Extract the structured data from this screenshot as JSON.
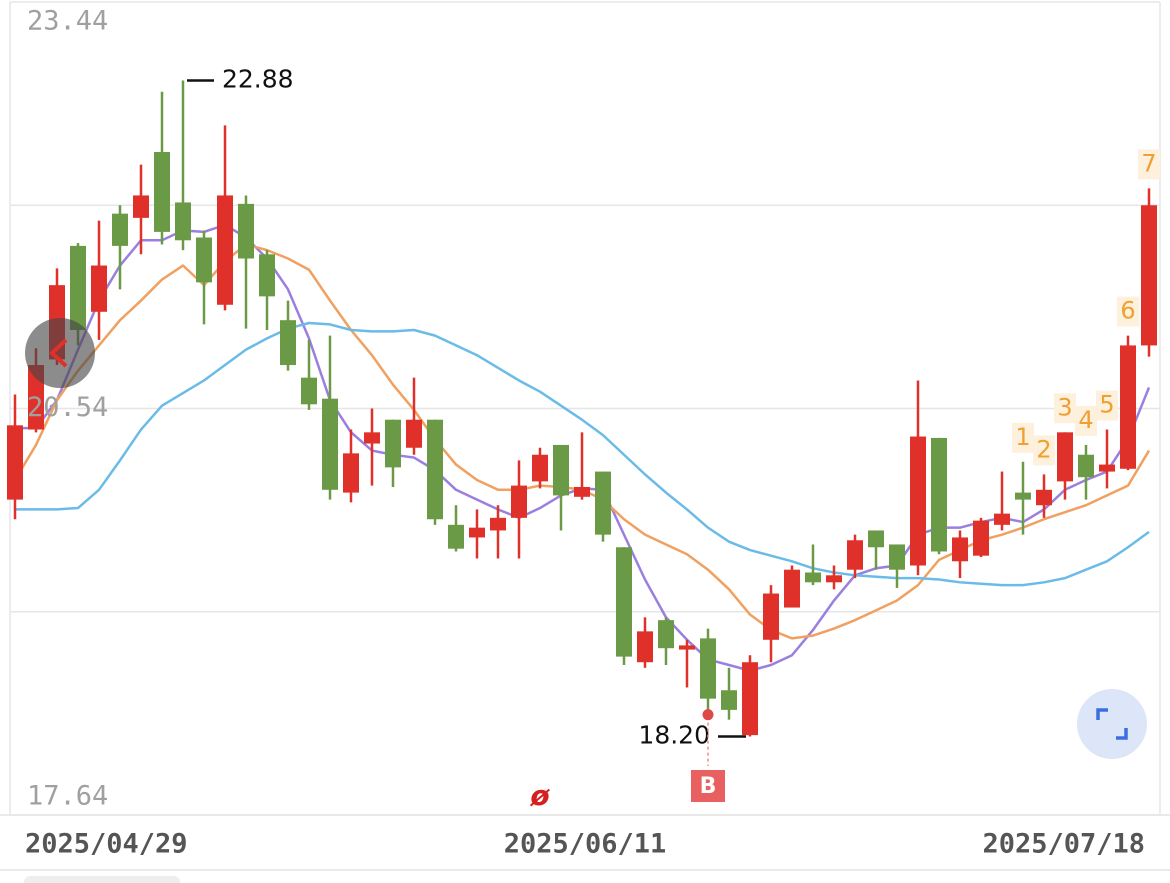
{
  "chart_data": {
    "type": "candlestick",
    "ylim": [
      17.64,
      23.44
    ],
    "yticks": [
      17.64,
      20.54,
      23.44
    ],
    "grid": true,
    "up_color": "#e0302a",
    "down_color": "#6a9a45",
    "categories": [
      "2025/04/29",
      null,
      null,
      null,
      null,
      null,
      null,
      null,
      null,
      null,
      null,
      null,
      null,
      null,
      null,
      null,
      null,
      null,
      null,
      null,
      null,
      null,
      null,
      null,
      null,
      null,
      null,
      "2025/06/11",
      null,
      null,
      null,
      null,
      null,
      null,
      null,
      null,
      null,
      null,
      null,
      null,
      null,
      null,
      null,
      null,
      null,
      null,
      null,
      null,
      null,
      null,
      null,
      null,
      null,
      null,
      "2025/07/18"
    ],
    "open": [
      19.89,
      20.39,
      20.89,
      21.7,
      21.23,
      21.93,
      21.9,
      22.37,
      22.01,
      21.76,
      21.28,
      22.0,
      21.64,
      21.17,
      20.76,
      20.61,
      19.94,
      20.29,
      20.46,
      20.26,
      20.46,
      19.71,
      19.62,
      19.67,
      19.76,
      20.02,
      20.28,
      19.91,
      20.09,
      19.55,
      18.73,
      19.03,
      18.82,
      18.9,
      18.53,
      18.21,
      18.89,
      19.12,
      19.37,
      19.3,
      19.39,
      19.67,
      19.57,
      19.42,
      20.33,
      19.45,
      19.49,
      19.71,
      19.94,
      19.85,
      20.02,
      20.21,
      20.09,
      20.11,
      20.99
    ],
    "high": [
      20.64,
      20.97,
      21.54,
      21.72,
      21.88,
      21.99,
      22.28,
      22.8,
      22.88,
      21.81,
      22.56,
      22.06,
      21.67,
      21.31,
      21.03,
      21.06,
      20.39,
      20.54,
      20.46,
      20.76,
      20.46,
      19.85,
      19.82,
      19.85,
      20.17,
      20.26,
      20.28,
      20.37,
      20.09,
      19.55,
      19.05,
      19.05,
      18.89,
      18.97,
      18.69,
      18.78,
      19.28,
      19.42,
      19.57,
      19.42,
      19.64,
      19.67,
      19.57,
      20.74,
      20.33,
      19.67,
      19.76,
      20.09,
      20.16,
      20.07,
      20.37,
      20.28,
      20.39,
      21.06,
      22.11
    ],
    "low": [
      19.75,
      20.37,
      20.85,
      20.99,
      21.03,
      21.39,
      21.64,
      21.71,
      21.67,
      21.14,
      21.24,
      21.11,
      21.1,
      20.81,
      20.53,
      19.89,
      19.87,
      19.99,
      19.98,
      20.21,
      19.71,
      19.52,
      19.47,
      19.47,
      19.47,
      19.97,
      19.67,
      19.89,
      19.59,
      18.71,
      18.69,
      18.71,
      18.55,
      18.37,
      18.32,
      18.2,
      18.73,
      19.12,
      19.28,
      19.25,
      19.33,
      19.39,
      19.26,
      19.35,
      19.5,
      19.33,
      19.48,
      19.67,
      19.64,
      19.76,
      19.89,
      19.89,
      19.97,
      20.1,
      20.91
    ],
    "close": [
      20.42,
      20.85,
      21.42,
      21.1,
      21.56,
      21.7,
      22.06,
      21.8,
      21.74,
      21.44,
      22.06,
      21.61,
      21.34,
      20.85,
      20.57,
      19.96,
      20.22,
      20.37,
      20.12,
      20.46,
      19.75,
      19.54,
      19.69,
      19.76,
      19.99,
      20.21,
      19.92,
      19.98,
      19.64,
      18.77,
      18.95,
      18.83,
      18.85,
      18.47,
      18.39,
      18.73,
      19.22,
      19.39,
      19.3,
      19.35,
      19.6,
      19.55,
      19.39,
      20.34,
      19.52,
      19.62,
      19.74,
      19.79,
      19.89,
      19.96,
      20.37,
      20.05,
      20.14,
      20.99,
      21.99
    ],
    "lines": [
      {
        "color": "#9b7fe0",
        "values": [
          20.4,
          20.4,
          20.6,
          20.96,
          21.31,
          21.56,
          21.74,
          21.74,
          21.81,
          21.8,
          21.85,
          21.76,
          21.61,
          21.39,
          21.04,
          20.6,
          20.37,
          20.24,
          20.21,
          20.19,
          20.1,
          19.96,
          19.89,
          19.82,
          19.76,
          19.83,
          19.92,
          19.97,
          19.96,
          19.64,
          19.32,
          19.05,
          18.89,
          18.75,
          18.71,
          18.67,
          18.71,
          18.78,
          18.96,
          19.17,
          19.35,
          19.4,
          19.42,
          19.64,
          19.69,
          19.69,
          19.73,
          19.76,
          19.73,
          19.82,
          19.96,
          20.03,
          20.09,
          20.32,
          20.69
        ]
      },
      {
        "color": "#f0a060",
        "values": [
          20.03,
          20.28,
          20.6,
          20.81,
          20.99,
          21.17,
          21.31,
          21.46,
          21.56,
          21.42,
          21.59,
          21.71,
          21.67,
          21.61,
          21.53,
          21.31,
          21.1,
          20.92,
          20.71,
          20.53,
          20.32,
          20.14,
          20.03,
          19.96,
          19.96,
          19.99,
          19.98,
          19.96,
          19.89,
          19.75,
          19.64,
          19.57,
          19.5,
          19.39,
          19.25,
          19.07,
          18.96,
          18.9,
          18.92,
          18.97,
          19.03,
          19.1,
          19.17,
          19.28,
          19.46,
          19.53,
          19.6,
          19.64,
          19.69,
          19.75,
          19.8,
          19.85,
          19.92,
          19.99,
          20.24
        ]
      },
      {
        "color": "#6bbbe8",
        "values": [
          19.82,
          19.82,
          19.82,
          19.83,
          19.96,
          20.17,
          20.39,
          20.56,
          20.65,
          20.74,
          20.85,
          20.96,
          21.04,
          21.11,
          21.15,
          21.14,
          21.1,
          21.09,
          21.09,
          21.1,
          21.06,
          20.99,
          20.92,
          20.83,
          20.74,
          20.66,
          20.56,
          20.46,
          20.35,
          20.21,
          20.07,
          19.94,
          19.82,
          19.69,
          19.59,
          19.53,
          19.49,
          19.45,
          19.4,
          19.37,
          19.35,
          19.34,
          19.33,
          19.33,
          19.32,
          19.3,
          19.29,
          19.28,
          19.28,
          19.3,
          19.33,
          19.39,
          19.45,
          19.55,
          19.66
        ]
      }
    ],
    "high_labels": [
      null,
      null,
      null,
      null,
      null,
      null,
      null,
      null,
      "22.88",
      null,
      null,
      null,
      null,
      null,
      null,
      null,
      null,
      null,
      null,
      null,
      null,
      null,
      null,
      null,
      null,
      null,
      null,
      null,
      null,
      null,
      null,
      null,
      null,
      null,
      null,
      null,
      null,
      null,
      null,
      null,
      null,
      null,
      null,
      null,
      null,
      null,
      null,
      null,
      null,
      null,
      null,
      null,
      null,
      null,
      null
    ],
    "low_labels": [
      null,
      null,
      null,
      null,
      null,
      null,
      null,
      null,
      null,
      null,
      null,
      null,
      null,
      null,
      null,
      null,
      null,
      null,
      null,
      null,
      null,
      null,
      null,
      null,
      null,
      null,
      null,
      null,
      null,
      null,
      null,
      null,
      null,
      null,
      null,
      "18.20",
      null,
      null,
      null,
      null,
      null,
      null,
      null,
      null,
      null,
      null,
      null,
      null,
      null,
      null,
      null,
      null,
      null,
      null,
      null
    ],
    "trade_markers": [
      null,
      null,
      null,
      null,
      null,
      null,
      null,
      null,
      null,
      null,
      null,
      null,
      null,
      null,
      null,
      null,
      null,
      null,
      null,
      null,
      null,
      null,
      null,
      null,
      null,
      null,
      null,
      null,
      null,
      null,
      null,
      null,
      null,
      "B",
      null,
      null,
      null,
      null,
      null,
      null,
      null,
      null,
      null,
      null,
      null,
      null,
      null,
      null,
      null,
      null,
      null,
      null,
      null,
      null,
      null
    ],
    "symbols": [
      null,
      null,
      null,
      null,
      null,
      null,
      null,
      null,
      null,
      null,
      null,
      null,
      null,
      null,
      null,
      null,
      null,
      null,
      null,
      null,
      null,
      null,
      null,
      null,
      null,
      "ø",
      null,
      null,
      null,
      null,
      null,
      null,
      null,
      null,
      null,
      null,
      null,
      null,
      null,
      null,
      null,
      null,
      null,
      null,
      null,
      null,
      null,
      null,
      null,
      null,
      null,
      null,
      null,
      null,
      null
    ],
    "signal_labels": [
      null,
      null,
      null,
      null,
      null,
      null,
      null,
      null,
      null,
      null,
      null,
      null,
      null,
      null,
      null,
      null,
      null,
      null,
      null,
      null,
      null,
      null,
      null,
      null,
      null,
      null,
      null,
      null,
      null,
      null,
      null,
      null,
      null,
      null,
      null,
      null,
      null,
      null,
      null,
      null,
      null,
      null,
      null,
      null,
      null,
      null,
      null,
      null,
      "1",
      "2",
      "3",
      "4",
      "5",
      "6",
      "7"
    ]
  }
}
